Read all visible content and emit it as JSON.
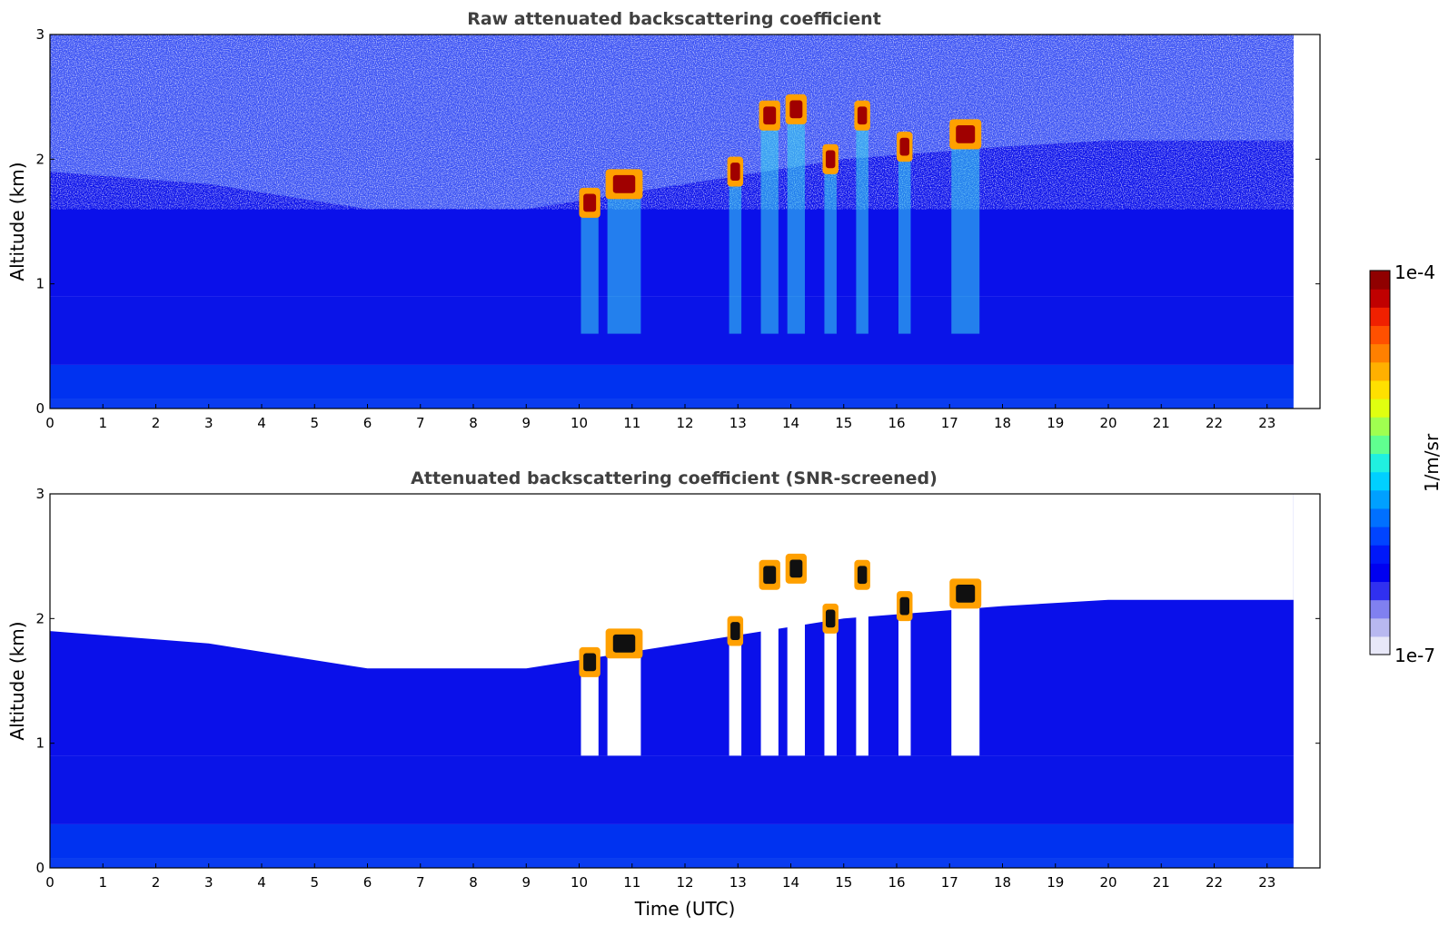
{
  "colors": {
    "background": "#ffffff",
    "frame": "#000000",
    "title": "#404040",
    "colormap": [
      "#e8e8f8",
      "#b8b8f0",
      "#8080f0",
      "#3030f0",
      "#0000f0",
      "#0018f8",
      "#0044ff",
      "#0070ff",
      "#00a0ff",
      "#00d0ff",
      "#20f0e0",
      "#60ff90",
      "#a0ff50",
      "#e0ff10",
      "#ffe000",
      "#ffb000",
      "#ff8000",
      "#ff5000",
      "#f02000",
      "#c00000",
      "#900000"
    ]
  },
  "colorbar": {
    "max_label": "1e-4",
    "min_label": "1e-7",
    "unit_label": "1/m/sr",
    "scale": "log",
    "range": [
      1e-07,
      0.0001
    ]
  },
  "chart_data": [
    {
      "type": "heatmap",
      "title": "Raw attenuated backscattering coefficient",
      "xlabel": "",
      "ylabel": "Altitude (km)",
      "xlim": [
        0,
        24
      ],
      "ylim": [
        0,
        3
      ],
      "x_data_end": 23.5,
      "xticks": [
        "0",
        "1",
        "2",
        "3",
        "4",
        "5",
        "6",
        "7",
        "8",
        "9",
        "10",
        "11",
        "12",
        "13",
        "14",
        "15",
        "16",
        "17",
        "18",
        "19",
        "20",
        "21",
        "22",
        "23"
      ],
      "yticks": [
        "0",
        "1",
        "2",
        "3"
      ],
      "features": [
        {
          "name": "boundary layer top (signal fade altitude, km)",
          "x": [
            0,
            3,
            6,
            9,
            12,
            15,
            18,
            20,
            23.5
          ],
          "y": [
            1.9,
            1.8,
            1.6,
            1.6,
            1.8,
            2.0,
            2.1,
            2.15,
            2.15
          ]
        },
        {
          "name": "cloud segments (time start, time end, altitude km)",
          "segments": [
            [
              10.0,
              10.4,
              1.65
            ],
            [
              10.5,
              11.2,
              1.8
            ],
            [
              12.8,
              13.1,
              1.9
            ],
            [
              13.4,
              13.8,
              2.35
            ],
            [
              13.9,
              14.3,
              2.4
            ],
            [
              14.6,
              14.9,
              2.0
            ],
            [
              15.2,
              15.5,
              2.35
            ],
            [
              16.0,
              16.3,
              2.1
            ],
            [
              17.0,
              17.6,
              2.2
            ]
          ]
        }
      ]
    },
    {
      "type": "heatmap",
      "title": "Attenuated backscattering coefficient (SNR-screened)",
      "xlabel": "Time (UTC)",
      "ylabel": "Altitude (km)",
      "xlim": [
        0,
        24
      ],
      "ylim": [
        0,
        3
      ],
      "x_data_end": 23.5,
      "xticks": [
        "0",
        "1",
        "2",
        "3",
        "4",
        "5",
        "6",
        "7",
        "8",
        "9",
        "10",
        "11",
        "12",
        "13",
        "14",
        "15",
        "16",
        "17",
        "18",
        "19",
        "20",
        "21",
        "22",
        "23"
      ],
      "yticks": [
        "0",
        "1",
        "2",
        "3"
      ],
      "features": [
        {
          "name": "boundary layer top (signal fade altitude, km)",
          "x": [
            0,
            3,
            6,
            9,
            12,
            15,
            18,
            20,
            23.5
          ],
          "y": [
            1.9,
            1.8,
            1.6,
            1.6,
            1.8,
            2.0,
            2.1,
            2.15,
            2.15
          ]
        },
        {
          "name": "cloud segments (time start, time end, altitude km)",
          "segments": [
            [
              10.0,
              10.4,
              1.65
            ],
            [
              10.5,
              11.2,
              1.8
            ],
            [
              12.8,
              13.1,
              1.9
            ],
            [
              13.4,
              13.8,
              2.35
            ],
            [
              13.9,
              14.3,
              2.4
            ],
            [
              14.6,
              14.9,
              2.0
            ],
            [
              15.2,
              15.5,
              2.35
            ],
            [
              16.0,
              16.3,
              2.1
            ],
            [
              17.0,
              17.6,
              2.2
            ]
          ]
        }
      ]
    }
  ]
}
